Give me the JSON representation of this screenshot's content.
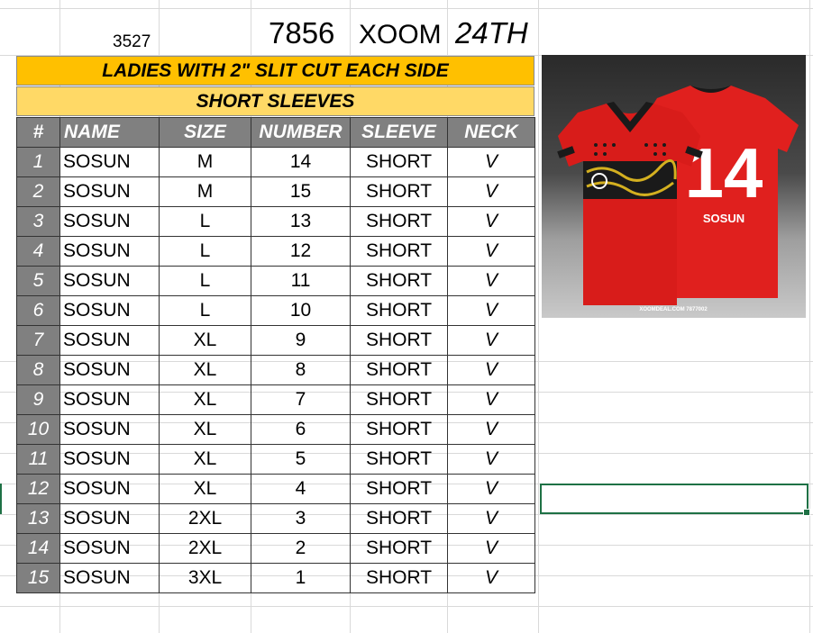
{
  "header": {
    "cell_a": "3527",
    "cell_b": "7856",
    "cell_c": "XOOM",
    "cell_d": "24TH"
  },
  "banners": {
    "line1": "LADIES WITH 2\" SLIT CUT EACH SIDE",
    "line2": "SHORT SLEEVES"
  },
  "table": {
    "columns": [
      "#",
      "NAME",
      "SIZE",
      "NUMBER",
      "SLEEVE",
      "NECK"
    ],
    "rows": [
      {
        "idx": "1",
        "name": "SOSUN",
        "size": "M",
        "number": "14",
        "sleeve": "SHORT",
        "neck": "V"
      },
      {
        "idx": "2",
        "name": "SOSUN",
        "size": "M",
        "number": "15",
        "sleeve": "SHORT",
        "neck": "V"
      },
      {
        "idx": "3",
        "name": "SOSUN",
        "size": "L",
        "number": "13",
        "sleeve": "SHORT",
        "neck": "V"
      },
      {
        "idx": "4",
        "name": "SOSUN",
        "size": "L",
        "number": "12",
        "sleeve": "SHORT",
        "neck": "V"
      },
      {
        "idx": "5",
        "name": "SOSUN",
        "size": "L",
        "number": "11",
        "sleeve": "SHORT",
        "neck": "V"
      },
      {
        "idx": "6",
        "name": "SOSUN",
        "size": "L",
        "number": "10",
        "sleeve": "SHORT",
        "neck": "V"
      },
      {
        "idx": "7",
        "name": "SOSUN",
        "size": "XL",
        "number": "9",
        "sleeve": "SHORT",
        "neck": "V"
      },
      {
        "idx": "8",
        "name": "SOSUN",
        "size": "XL",
        "number": "8",
        "sleeve": "SHORT",
        "neck": "V"
      },
      {
        "idx": "9",
        "name": "SOSUN",
        "size": "XL",
        "number": "7",
        "sleeve": "SHORT",
        "neck": "V"
      },
      {
        "idx": "10",
        "name": "SOSUN",
        "size": "XL",
        "number": "6",
        "sleeve": "SHORT",
        "neck": "V"
      },
      {
        "idx": "11",
        "name": "SOSUN",
        "size": "XL",
        "number": "5",
        "sleeve": "SHORT",
        "neck": "V"
      },
      {
        "idx": "12",
        "name": "SOSUN",
        "size": "XL",
        "number": "4",
        "sleeve": "SHORT",
        "neck": "V"
      },
      {
        "idx": "13",
        "name": "SOSUN",
        "size": "2XL",
        "number": "3",
        "sleeve": "SHORT",
        "neck": "V"
      },
      {
        "idx": "14",
        "name": "SOSUN",
        "size": "2XL",
        "number": "2",
        "sleeve": "SHORT",
        "neck": "V"
      },
      {
        "idx": "15",
        "name": "SOSUN",
        "size": "3XL",
        "number": "1",
        "sleeve": "SHORT",
        "neck": "V"
      }
    ]
  },
  "jersey_image": {
    "back_number": "14",
    "back_name": "SOSUN",
    "footer_text": "XOOMDEAL.COM  7877002",
    "jersey_color": "#e0201e",
    "trim_color": "#1a1a1a",
    "pattern_color": "#d4b020"
  },
  "colors": {
    "banner1_bg": "#ffc000",
    "banner2_bg": "#ffd966",
    "header_bg": "#808080",
    "selection": "#1e7145"
  }
}
